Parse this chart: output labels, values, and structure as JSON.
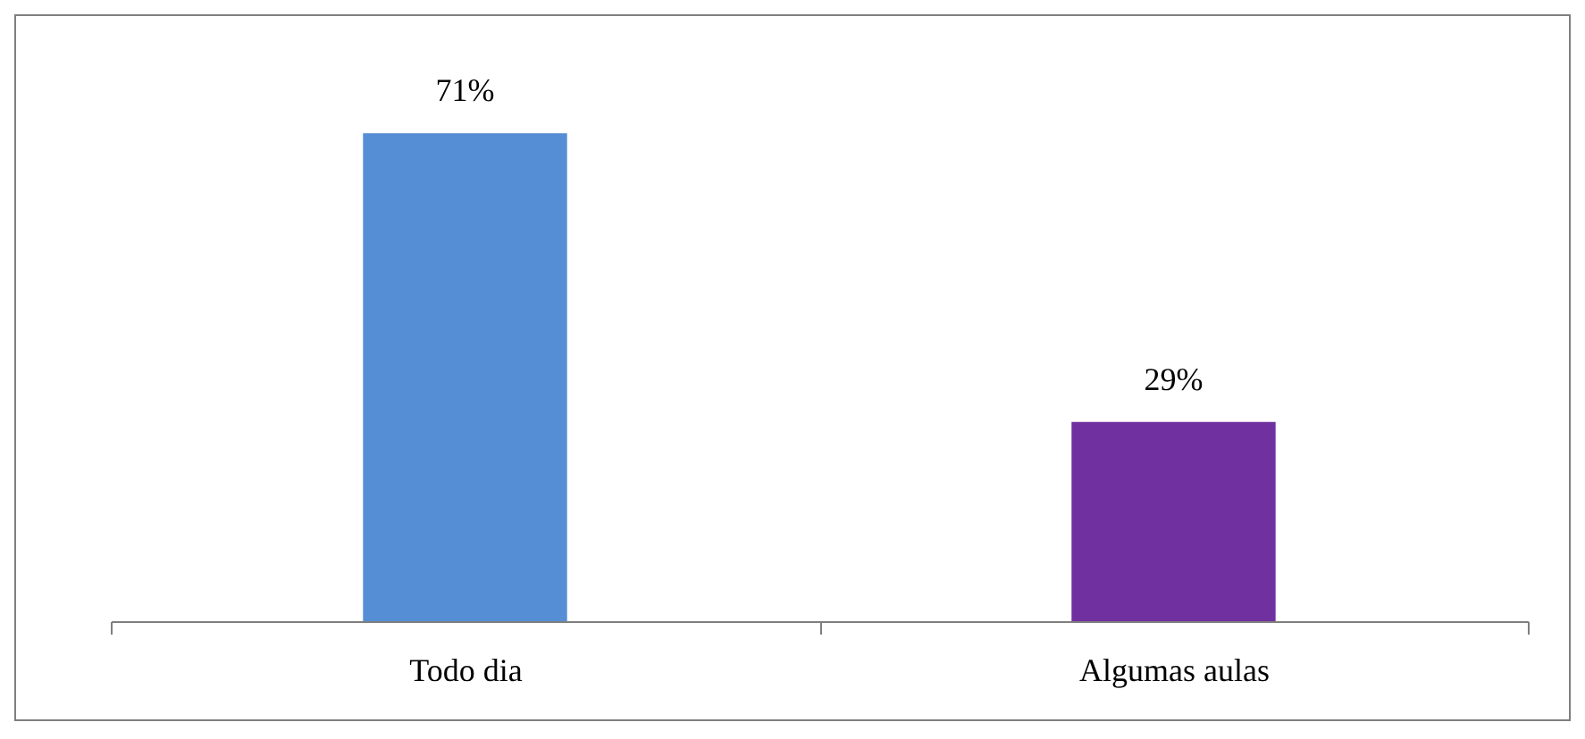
{
  "chart_data": {
    "type": "bar",
    "categories": [
      "Todo dia",
      "Algumas aulas"
    ],
    "values": [
      71,
      29
    ],
    "colors": [
      "#558ed5",
      "#7030a0"
    ],
    "value_labels": [
      "71%",
      "29%"
    ],
    "grid": false,
    "legend": false
  }
}
